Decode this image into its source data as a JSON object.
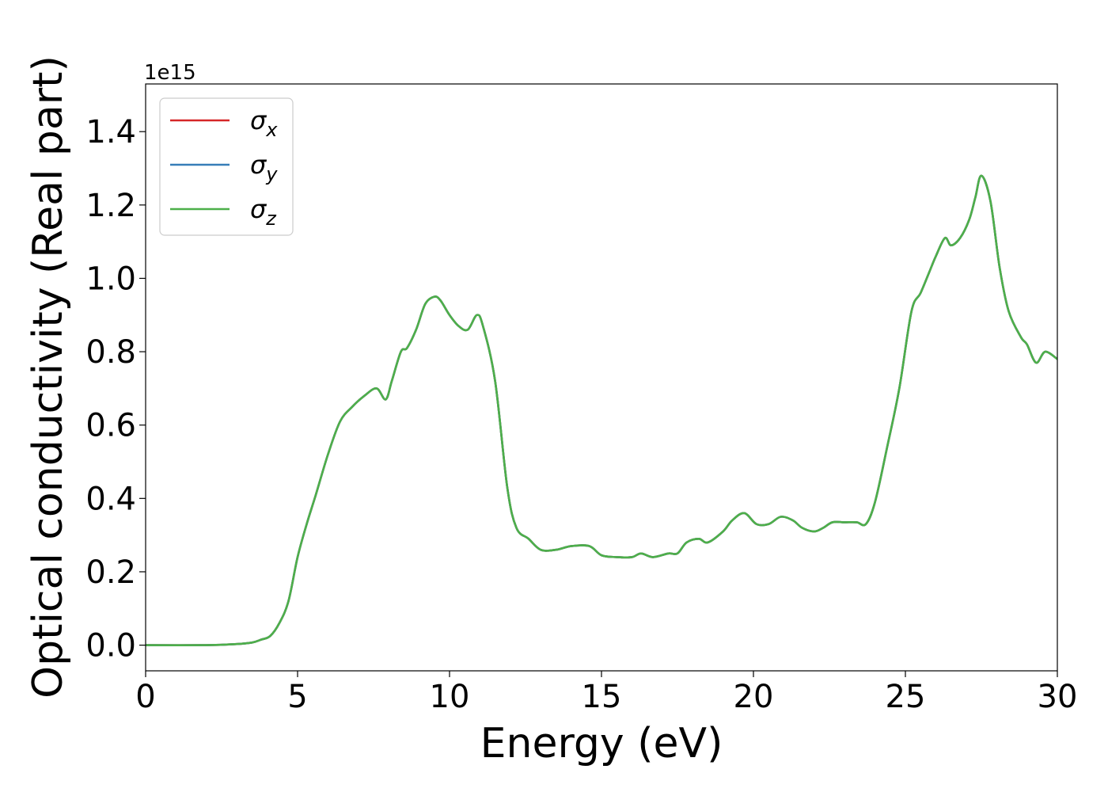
{
  "chart_data": {
    "type": "line",
    "xlabel": "Energy (eV)",
    "ylabel": "Optical conductivity (Real part)",
    "y_offset_label": "1e15",
    "xlim": [
      0,
      30
    ],
    "ylim": [
      -0.07,
      1.53
    ],
    "xticks": [
      0,
      5,
      10,
      15,
      20,
      25,
      30
    ],
    "yticks": [
      0.0,
      0.2,
      0.4,
      0.6,
      0.8,
      1.0,
      1.2,
      1.4
    ],
    "xtick_labels": [
      "0",
      "5",
      "10",
      "15",
      "20",
      "25",
      "30"
    ],
    "ytick_labels": [
      "0.0",
      "0.2",
      "0.4",
      "0.6",
      "0.8",
      "1.0",
      "1.2",
      "1.4"
    ],
    "grid": false,
    "legend_position": "top-left",
    "series": [
      {
        "name": "σx",
        "name_base": "σ",
        "name_sub": "x",
        "color": "#d62728",
        "x": [
          0,
          2,
          3,
          3.5,
          3.8,
          4.1,
          4.4,
          4.7,
          5.0,
          5.3,
          5.6,
          6.0,
          6.4,
          6.8,
          7.2,
          7.6,
          7.9,
          8.1,
          8.4,
          8.6,
          8.9,
          9.2,
          9.5,
          9.7,
          10.0,
          10.3,
          10.6,
          10.9,
          11.1,
          11.5,
          11.9,
          12.2,
          12.6,
          13.0,
          13.5,
          14.0,
          14.6,
          15.0,
          15.5,
          16.0,
          16.3,
          16.7,
          17.2,
          17.5,
          17.8,
          18.2,
          18.5,
          19.0,
          19.3,
          19.7,
          20.1,
          20.5,
          20.9,
          21.3,
          21.6,
          22.0,
          22.3,
          22.6,
          23.0,
          23.4,
          23.7,
          24.0,
          24.4,
          24.8,
          25.2,
          25.5,
          25.8,
          26.0,
          26.3,
          26.5,
          26.8,
          27.1,
          27.3,
          27.5,
          27.8,
          28.1,
          28.4,
          28.8,
          29.0,
          29.3,
          29.6,
          30.0
        ],
        "y": [
          0.0,
          0.0,
          0.003,
          0.007,
          0.015,
          0.025,
          0.06,
          0.12,
          0.24,
          0.33,
          0.41,
          0.52,
          0.61,
          0.65,
          0.68,
          0.7,
          0.67,
          0.72,
          0.8,
          0.81,
          0.86,
          0.93,
          0.95,
          0.94,
          0.9,
          0.87,
          0.86,
          0.9,
          0.87,
          0.72,
          0.43,
          0.32,
          0.29,
          0.26,
          0.26,
          0.27,
          0.27,
          0.245,
          0.24,
          0.24,
          0.25,
          0.24,
          0.25,
          0.25,
          0.28,
          0.29,
          0.28,
          0.31,
          0.34,
          0.36,
          0.33,
          0.33,
          0.35,
          0.34,
          0.32,
          0.31,
          0.32,
          0.335,
          0.335,
          0.335,
          0.33,
          0.39,
          0.54,
          0.7,
          0.91,
          0.96,
          1.02,
          1.06,
          1.11,
          1.09,
          1.11,
          1.16,
          1.22,
          1.28,
          1.21,
          1.03,
          0.91,
          0.84,
          0.82,
          0.77,
          0.8,
          0.78
        ]
      },
      {
        "name": "σy",
        "name_base": "σ",
        "name_sub": "y",
        "color": "#377eb8",
        "x": [
          0,
          2,
          3,
          3.5,
          3.8,
          4.1,
          4.4,
          4.7,
          5.0,
          5.3,
          5.6,
          6.0,
          6.4,
          6.8,
          7.2,
          7.6,
          7.9,
          8.1,
          8.4,
          8.6,
          8.9,
          9.2,
          9.5,
          9.7,
          10.0,
          10.3,
          10.6,
          10.9,
          11.1,
          11.5,
          11.9,
          12.2,
          12.6,
          13.0,
          13.5,
          14.0,
          14.6,
          15.0,
          15.5,
          16.0,
          16.3,
          16.7,
          17.2,
          17.5,
          17.8,
          18.2,
          18.5,
          19.0,
          19.3,
          19.7,
          20.1,
          20.5,
          20.9,
          21.3,
          21.6,
          22.0,
          22.3,
          22.6,
          23.0,
          23.4,
          23.7,
          24.0,
          24.4,
          24.8,
          25.2,
          25.5,
          25.8,
          26.0,
          26.3,
          26.5,
          26.8,
          27.1,
          27.3,
          27.5,
          27.8,
          28.1,
          28.4,
          28.8,
          29.0,
          29.3,
          29.6,
          30.0
        ],
        "y": [
          0.0,
          0.0,
          0.003,
          0.007,
          0.015,
          0.025,
          0.06,
          0.12,
          0.24,
          0.33,
          0.41,
          0.52,
          0.61,
          0.65,
          0.68,
          0.7,
          0.67,
          0.72,
          0.8,
          0.81,
          0.86,
          0.93,
          0.95,
          0.94,
          0.9,
          0.87,
          0.86,
          0.9,
          0.87,
          0.72,
          0.43,
          0.32,
          0.29,
          0.26,
          0.26,
          0.27,
          0.27,
          0.245,
          0.24,
          0.24,
          0.25,
          0.24,
          0.25,
          0.25,
          0.28,
          0.29,
          0.28,
          0.31,
          0.34,
          0.36,
          0.33,
          0.33,
          0.35,
          0.34,
          0.32,
          0.31,
          0.32,
          0.335,
          0.335,
          0.335,
          0.33,
          0.39,
          0.54,
          0.7,
          0.91,
          0.96,
          1.02,
          1.06,
          1.11,
          1.09,
          1.11,
          1.16,
          1.22,
          1.28,
          1.21,
          1.03,
          0.91,
          0.84,
          0.82,
          0.77,
          0.8,
          0.78
        ]
      },
      {
        "name": "σz",
        "name_base": "σ",
        "name_sub": "z",
        "color": "#4daf4a",
        "x": [
          0,
          2,
          3,
          3.5,
          3.8,
          4.1,
          4.4,
          4.7,
          5.0,
          5.3,
          5.6,
          6.0,
          6.4,
          6.8,
          7.2,
          7.6,
          7.9,
          8.1,
          8.4,
          8.6,
          8.9,
          9.2,
          9.5,
          9.7,
          10.0,
          10.3,
          10.6,
          10.9,
          11.1,
          11.5,
          11.9,
          12.2,
          12.6,
          13.0,
          13.5,
          14.0,
          14.6,
          15.0,
          15.5,
          16.0,
          16.3,
          16.7,
          17.2,
          17.5,
          17.8,
          18.2,
          18.5,
          19.0,
          19.3,
          19.7,
          20.1,
          20.5,
          20.9,
          21.3,
          21.6,
          22.0,
          22.3,
          22.6,
          23.0,
          23.4,
          23.7,
          24.0,
          24.4,
          24.8,
          25.2,
          25.5,
          25.8,
          26.0,
          26.3,
          26.5,
          26.8,
          27.1,
          27.3,
          27.5,
          27.8,
          28.1,
          28.4,
          28.8,
          29.0,
          29.3,
          29.6,
          30.0
        ],
        "y": [
          0.0,
          0.0,
          0.003,
          0.007,
          0.015,
          0.025,
          0.06,
          0.12,
          0.24,
          0.33,
          0.41,
          0.52,
          0.61,
          0.65,
          0.68,
          0.7,
          0.67,
          0.72,
          0.8,
          0.81,
          0.86,
          0.93,
          0.95,
          0.94,
          0.9,
          0.87,
          0.86,
          0.9,
          0.87,
          0.72,
          0.43,
          0.32,
          0.29,
          0.26,
          0.26,
          0.27,
          0.27,
          0.245,
          0.24,
          0.24,
          0.25,
          0.24,
          0.25,
          0.25,
          0.28,
          0.29,
          0.28,
          0.31,
          0.34,
          0.36,
          0.33,
          0.33,
          0.35,
          0.34,
          0.32,
          0.31,
          0.32,
          0.335,
          0.335,
          0.335,
          0.33,
          0.39,
          0.54,
          0.7,
          0.91,
          0.96,
          1.02,
          1.06,
          1.11,
          1.09,
          1.11,
          1.16,
          1.22,
          1.28,
          1.21,
          1.03,
          0.91,
          0.84,
          0.82,
          0.77,
          0.8,
          0.78
        ]
      }
    ]
  }
}
